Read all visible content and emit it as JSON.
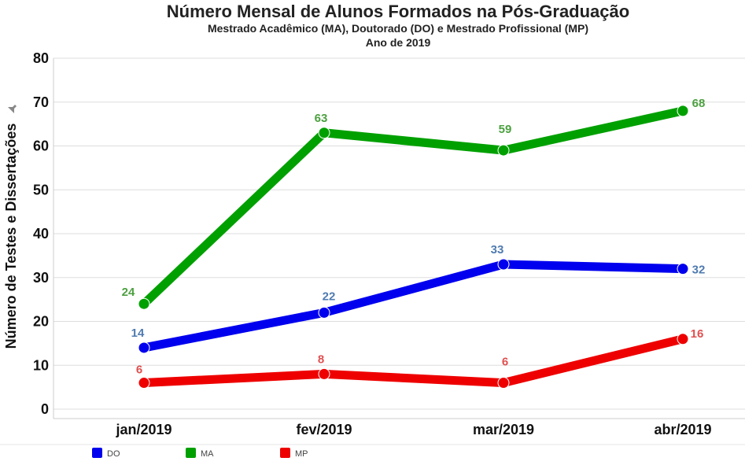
{
  "chart_data": {
    "type": "line",
    "title": "Número Mensal de Alunos Formados na Pós-Graduação",
    "subtitle": "Mestrado Acadêmico (MA), Doutorado (DO) e Mestrado Profissional (MP)",
    "subtitle2": "Ano de 2019",
    "xlabel": "",
    "ylabel": "Número de Testes e Dissertações",
    "categories": [
      "jan/2019",
      "fev/2019",
      "mar/2019",
      "abr/2019"
    ],
    "ylim": [
      0,
      80
    ],
    "yticks": [
      "0",
      "10",
      "20",
      "30",
      "40",
      "50",
      "60",
      "70",
      "80"
    ],
    "grid": true,
    "legend_position": "bottom-left",
    "series": [
      {
        "name": "DO",
        "values": [
          14,
          22,
          33,
          32
        ],
        "labels": [
          "14",
          "22",
          "33",
          "32"
        ],
        "color": "#0000ee",
        "label_color": "#4f7bb0"
      },
      {
        "name": "MA",
        "values": [
          24,
          63,
          59,
          68
        ],
        "labels": [
          "24",
          "63",
          "59",
          "68"
        ],
        "color": "#00a000",
        "label_color": "#4ca040"
      },
      {
        "name": "MP",
        "values": [
          6,
          8,
          6,
          16
        ],
        "labels": [
          "6",
          "8",
          "6",
          "16"
        ],
        "color": "#ee0000",
        "label_color": "#e05050"
      }
    ]
  }
}
